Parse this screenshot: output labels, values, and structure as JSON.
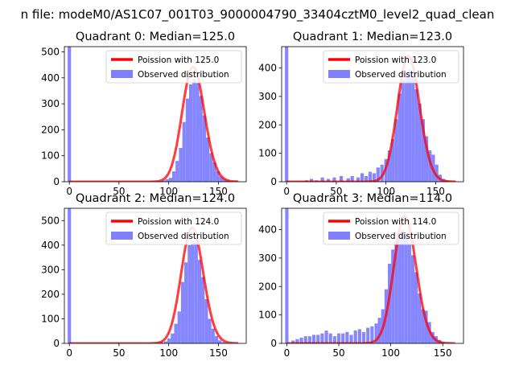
{
  "suptitle": "n file: modeM0/AS1C07_001T03_9000004790_33404cztM0_level2_quad_clean",
  "chart_data": [
    {
      "type": "bar",
      "title": "Quadrant 0: Median=125.0",
      "median": 125.0,
      "xlim": [
        -5,
        178
      ],
      "ylim": [
        0,
        520
      ],
      "xticks": [
        0,
        50,
        100,
        150
      ],
      "yticks": [
        0,
        100,
        200,
        300,
        400,
        500
      ],
      "legend": {
        "placement": "top-right",
        "fit_label": "Poission with 125.0",
        "observed_label": "Observed distribution"
      },
      "colors": {
        "fit": "#ff0000",
        "observed": "#7f7fff"
      },
      "bin_width": 3.4,
      "observed": [
        {
          "x": 0,
          "y": 520
        },
        {
          "x": 90,
          "y": 2
        },
        {
          "x": 95,
          "y": 5
        },
        {
          "x": 98.4,
          "y": 10
        },
        {
          "x": 101.8,
          "y": 15
        },
        {
          "x": 105.2,
          "y": 40
        },
        {
          "x": 108.6,
          "y": 80
        },
        {
          "x": 112.0,
          "y": 130
        },
        {
          "x": 115.4,
          "y": 230
        },
        {
          "x": 118.8,
          "y": 320
        },
        {
          "x": 122.2,
          "y": 375
        },
        {
          "x": 125.6,
          "y": 395
        },
        {
          "x": 129.0,
          "y": 380
        },
        {
          "x": 132.4,
          "y": 330
        },
        {
          "x": 135.8,
          "y": 255
        },
        {
          "x": 139.2,
          "y": 170
        },
        {
          "x": 142.6,
          "y": 110
        },
        {
          "x": 146.0,
          "y": 75
        },
        {
          "x": 149.4,
          "y": 40
        },
        {
          "x": 152.8,
          "y": 20
        },
        {
          "x": 156.2,
          "y": 10
        },
        {
          "x": 159.6,
          "y": 5
        }
      ]
    },
    {
      "type": "bar",
      "title": "Quadrant 1: Median=123.0",
      "median": 123.0,
      "xlim": [
        -5,
        178
      ],
      "ylim": [
        0,
        475
      ],
      "xticks": [
        0,
        50,
        100,
        150
      ],
      "yticks": [
        0,
        100,
        200,
        300,
        400
      ],
      "legend": {
        "placement": "top-right",
        "fit_label": "Poission with 123.0",
        "observed_label": "Observed distribution"
      },
      "colors": {
        "fit": "#ff0000",
        "observed": "#7f7fff"
      },
      "bin_width": 3.4,
      "observed": [
        {
          "x": 0,
          "y": 475
        },
        {
          "x": 20,
          "y": 5
        },
        {
          "x": 25,
          "y": 10
        },
        {
          "x": 30,
          "y": 5
        },
        {
          "x": 36,
          "y": 15
        },
        {
          "x": 42,
          "y": 10
        },
        {
          "x": 48,
          "y": 15
        },
        {
          "x": 55,
          "y": 20
        },
        {
          "x": 62,
          "y": 12
        },
        {
          "x": 66,
          "y": 20
        },
        {
          "x": 72,
          "y": 15
        },
        {
          "x": 76,
          "y": 30
        },
        {
          "x": 80,
          "y": 20
        },
        {
          "x": 84,
          "y": 35
        },
        {
          "x": 88,
          "y": 30
        },
        {
          "x": 92,
          "y": 50
        },
        {
          "x": 96,
          "y": 60
        },
        {
          "x": 100,
          "y": 80
        },
        {
          "x": 103.4,
          "y": 110
        },
        {
          "x": 106.8,
          "y": 150
        },
        {
          "x": 110.2,
          "y": 220
        },
        {
          "x": 113.6,
          "y": 310
        },
        {
          "x": 117.0,
          "y": 360
        },
        {
          "x": 120.4,
          "y": 385
        },
        {
          "x": 123.8,
          "y": 395
        },
        {
          "x": 127.2,
          "y": 390
        },
        {
          "x": 130.6,
          "y": 325
        },
        {
          "x": 134.0,
          "y": 275
        },
        {
          "x": 137.4,
          "y": 220
        },
        {
          "x": 140.8,
          "y": 160
        },
        {
          "x": 144.2,
          "y": 110
        },
        {
          "x": 147.6,
          "y": 95
        },
        {
          "x": 151.0,
          "y": 60
        },
        {
          "x": 154.4,
          "y": 25
        },
        {
          "x": 157.8,
          "y": 10
        },
        {
          "x": 161.2,
          "y": 5
        }
      ]
    },
    {
      "type": "bar",
      "title": "Quadrant 2: Median=124.0",
      "median": 124.0,
      "xlim": [
        -5,
        178
      ],
      "ylim": [
        0,
        550
      ],
      "xticks": [
        0,
        50,
        100,
        150
      ],
      "yticks": [
        0,
        100,
        200,
        300,
        400,
        500
      ],
      "legend": {
        "placement": "top-right",
        "fit_label": "Poission with 124.0",
        "observed_label": "Observed distribution"
      },
      "colors": {
        "fit": "#ff0000",
        "observed": "#7f7fff"
      },
      "bin_width": 3.4,
      "observed": [
        {
          "x": 0,
          "y": 550
        },
        {
          "x": 88,
          "y": 3
        },
        {
          "x": 93,
          "y": 5
        },
        {
          "x": 97,
          "y": 8
        },
        {
          "x": 100.4,
          "y": 20
        },
        {
          "x": 103.8,
          "y": 40
        },
        {
          "x": 107.2,
          "y": 80
        },
        {
          "x": 110.6,
          "y": 130
        },
        {
          "x": 114.0,
          "y": 250
        },
        {
          "x": 117.4,
          "y": 330
        },
        {
          "x": 120.8,
          "y": 400
        },
        {
          "x": 124.2,
          "y": 420
        },
        {
          "x": 127.6,
          "y": 410
        },
        {
          "x": 131.0,
          "y": 340
        },
        {
          "x": 134.4,
          "y": 270
        },
        {
          "x": 137.8,
          "y": 180
        },
        {
          "x": 141.2,
          "y": 100
        },
        {
          "x": 144.6,
          "y": 60
        },
        {
          "x": 148.0,
          "y": 30
        },
        {
          "x": 151.4,
          "y": 12
        },
        {
          "x": 154.8,
          "y": 5
        }
      ]
    },
    {
      "type": "bar",
      "title": "Quadrant 3: Median=114.0",
      "median": 114.0,
      "xlim": [
        -5,
        170
      ],
      "ylim": [
        0,
        475
      ],
      "xticks": [
        0,
        50,
        100,
        150
      ],
      "yticks": [
        0,
        100,
        200,
        300,
        400
      ],
      "legend": {
        "placement": "top-right",
        "fit_label": "Poission with 114.0",
        "observed_label": "Observed distribution"
      },
      "colors": {
        "fit": "#ff0000",
        "observed": "#7f7fff"
      },
      "bin_width": 3.2,
      "observed": [
        {
          "x": 0,
          "y": 475
        },
        {
          "x": 6,
          "y": 10
        },
        {
          "x": 10,
          "y": 15
        },
        {
          "x": 14,
          "y": 20
        },
        {
          "x": 18,
          "y": 25
        },
        {
          "x": 22,
          "y": 25
        },
        {
          "x": 26,
          "y": 30
        },
        {
          "x": 30,
          "y": 30
        },
        {
          "x": 34,
          "y": 35
        },
        {
          "x": 38,
          "y": 45
        },
        {
          "x": 42,
          "y": 35
        },
        {
          "x": 46,
          "y": 25
        },
        {
          "x": 50,
          "y": 35
        },
        {
          "x": 54,
          "y": 35
        },
        {
          "x": 58,
          "y": 40
        },
        {
          "x": 62,
          "y": 30
        },
        {
          "x": 66,
          "y": 45
        },
        {
          "x": 70,
          "y": 50
        },
        {
          "x": 74,
          "y": 40
        },
        {
          "x": 78,
          "y": 55
        },
        {
          "x": 82,
          "y": 60
        },
        {
          "x": 86,
          "y": 70
        },
        {
          "x": 89.2,
          "y": 90
        },
        {
          "x": 92.4,
          "y": 120
        },
        {
          "x": 95.6,
          "y": 190
        },
        {
          "x": 98.8,
          "y": 280
        },
        {
          "x": 102.0,
          "y": 330
        },
        {
          "x": 105.2,
          "y": 360
        },
        {
          "x": 108.4,
          "y": 390
        },
        {
          "x": 111.6,
          "y": 400
        },
        {
          "x": 114.8,
          "y": 380
        },
        {
          "x": 118.0,
          "y": 350
        },
        {
          "x": 121.2,
          "y": 310
        },
        {
          "x": 124.4,
          "y": 250
        },
        {
          "x": 127.6,
          "y": 175
        },
        {
          "x": 130.8,
          "y": 120
        },
        {
          "x": 134.0,
          "y": 115
        },
        {
          "x": 137.2,
          "y": 75
        },
        {
          "x": 140.4,
          "y": 40
        },
        {
          "x": 143.6,
          "y": 25
        },
        {
          "x": 146.8,
          "y": 12
        },
        {
          "x": 150.0,
          "y": 5
        }
      ]
    }
  ]
}
